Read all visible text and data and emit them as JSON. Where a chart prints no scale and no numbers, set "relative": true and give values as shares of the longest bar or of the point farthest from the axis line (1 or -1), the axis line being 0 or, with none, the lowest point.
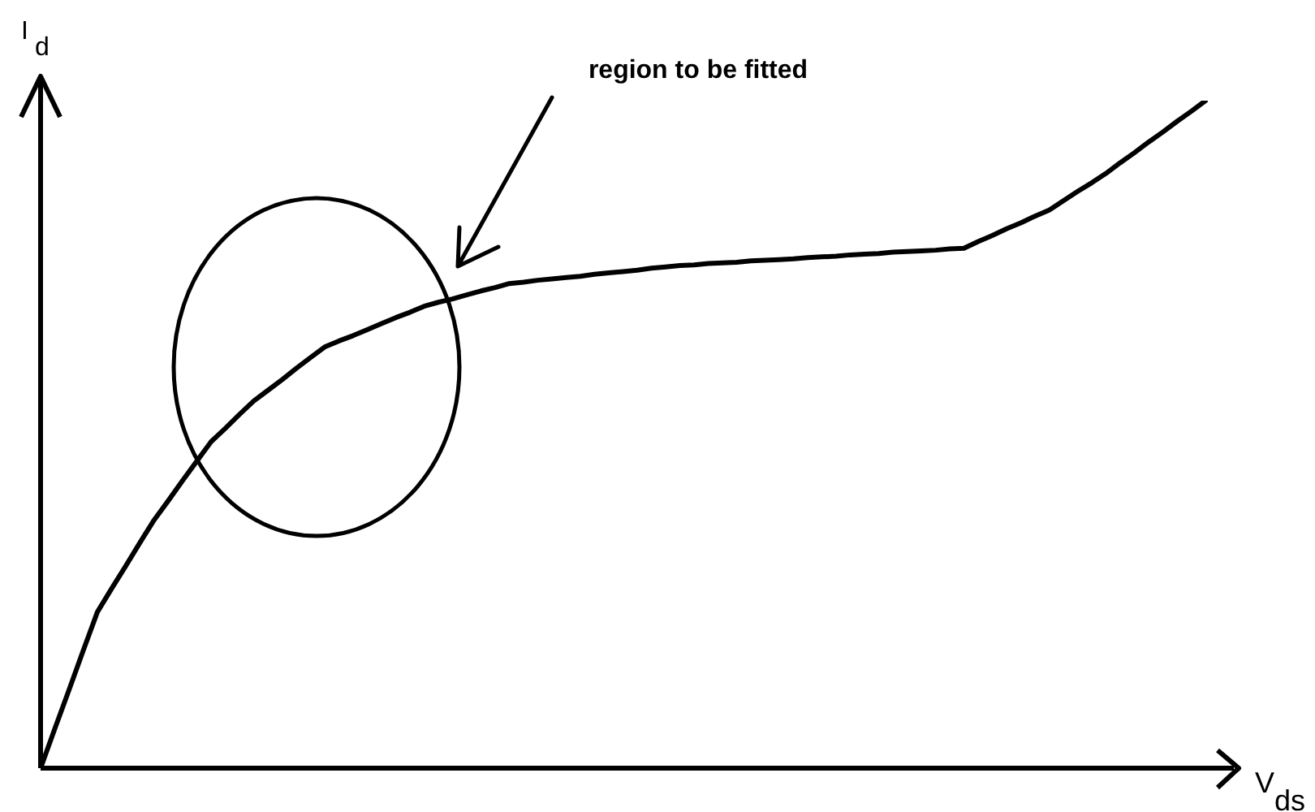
{
  "chart_data": {
    "type": "line",
    "relative": true,
    "xlabel": "V$_{ds}$",
    "ylabel": "I$_{d}$",
    "annotations": [
      "region to be fitted"
    ],
    "categories": [
      null,
      null,
      null,
      null,
      null,
      null,
      null,
      null,
      null,
      null,
      null,
      null,
      null,
      null,
      null,
      null,
      null,
      null,
      null,
      null,
      null,
      null,
      null,
      null,
      null,
      null,
      null,
      null,
      null,
      null,
      null,
      null,
      null,
      null,
      null,
      null,
      null,
      null,
      null,
      null,
      null,
      null,
      null,
      null,
      null,
      null,
      null,
      null,
      null,
      null,
      null,
      null,
      null,
      null,
      null,
      null,
      null,
      null,
      null,
      null,
      null,
      null,
      null,
      null,
      null,
      null,
      null,
      null,
      null,
      null,
      null,
      null,
      null,
      null,
      null,
      null,
      null,
      null,
      null,
      null,
      null,
      null,
      null,
      null,
      null
    ],
    "series": [
      {
        "color": "#000000",
        "values": [
          0,
          0.059,
          0.117,
          0.176,
          0.234,
          0.269,
          0.303,
          0.338,
          0.372,
          0.401,
          0.431,
          0.46,
          0.489,
          0.509,
          0.53,
          0.55,
          0.566,
          0.582,
          0.599,
          0.615,
          0.631,
          0.64,
          0.648,
          0.657,
          0.666,
          0.675,
          0.683,
          0.692,
          0.698,
          0.703,
          0.709,
          0.715,
          0.72,
          0.726,
          0.728,
          0.731,
          0.733,
          0.735,
          0.737,
          0.74,
          0.742,
          0.744,
          0.746,
          0.749,
          0.751,
          0.753,
          0.754,
          0.756,
          0.757,
          0.758,
          0.76,
          0.761,
          0.762,
          0.763,
          0.765,
          0.766,
          0.767,
          0.769,
          0.77,
          0.771,
          0.773,
          0.774,
          0.775,
          0.776,
          0.778,
          0.779,
          0.789,
          0.798,
          0.808,
          0.817,
          0.827,
          0.836,
          0.85,
          0.864,
          0.877,
          0.891,
          0.907,
          0.922,
          0.938,
          0.953,
          0.969,
          0.984,
          1.0,
          null,
          null
        ]
      }
    ]
  }
}
